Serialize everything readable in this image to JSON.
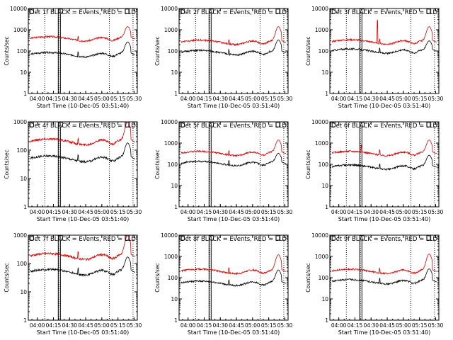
{
  "chart_data": [
    {
      "type": "line",
      "title": "Det 1f BLACK = Events, RED = LLD",
      "ylabel": "Counts/sec",
      "xlabel": "Start Time (10-Dec-05 03:51:40)",
      "yscale": "log",
      "ylim": [
        1,
        10000
      ],
      "x_ticks": [
        "04:00",
        "04:15",
        "04:30",
        "04:45",
        "05:00",
        "05:15",
        "05:30"
      ],
      "y_ticks": [
        "1",
        "10",
        "100",
        "1000",
        "10000"
      ],
      "flags": [
        "03:54",
        "04:21",
        "05:23"
      ],
      "series": [
        {
          "color": "#d40000",
          "level": 380,
          "spikes": []
        },
        {
          "color": "#000000",
          "level": 68,
          "spikes": []
        }
      ],
      "peak": {
        "time": "05:24",
        "red": 1400,
        "black": 270
      }
    },
    {
      "type": "line",
      "title": "Det 2f BLACK = Events, RED = LLD",
      "ylabel": "Counts/sec",
      "xlabel": "Start Time (10-Dec-05 03:51:40)",
      "yscale": "log",
      "ylim": [
        1,
        10000
      ],
      "x_ticks": [
        "04:00",
        "04:15",
        "04:30",
        "04:45",
        "05:00",
        "05:15",
        "05:30"
      ],
      "y_ticks": [
        "1",
        "10",
        "100",
        "1000",
        "10000"
      ],
      "flags": [
        "03:54",
        "04:21",
        "05:23"
      ],
      "series": [
        {
          "color": "#d40000",
          "level": 260,
          "spikes": []
        },
        {
          "color": "#000000",
          "level": 85,
          "spikes": []
        }
      ],
      "peak": {
        "time": "05:24",
        "red": 1400,
        "black": 330
      }
    },
    {
      "type": "line",
      "title": "Det 3f BLACK = Events, RED = LLD",
      "ylabel": "Counts/sec",
      "xlabel": "Start Time (10-Dec-05 03:51:40)",
      "yscale": "log",
      "ylim": [
        1,
        10000
      ],
      "x_ticks": [
        "04:00",
        "04:15",
        "04:30",
        "04:45",
        "05:00",
        "05:15",
        "05:30"
      ],
      "y_ticks": [
        "1",
        "10",
        "100",
        "1000",
        "10000"
      ],
      "flags": [
        "03:54",
        "04:21",
        "05:23"
      ],
      "series": [
        {
          "color": "#d40000",
          "level": 270,
          "spikes": [
            {
              "time": "04:36",
              "value": 2800
            }
          ]
        },
        {
          "color": "#000000",
          "level": 100,
          "spikes": []
        }
      ],
      "peak": {
        "time": "05:24",
        "red": 1400,
        "black": 300
      }
    },
    {
      "type": "line",
      "title": "Det 4f BLACK = Events, RED = LLD",
      "ylabel": "Counts/sec",
      "xlabel": "Start Time (10-Dec-05 03:51:40)",
      "yscale": "log",
      "ylim": [
        1,
        1000
      ],
      "x_ticks": [
        "04:00",
        "04:15",
        "04:30",
        "04:45",
        "05:00",
        "05:15",
        "05:30"
      ],
      "y_ticks": [
        "1",
        "10",
        "100",
        "1000"
      ],
      "flags": [
        "03:54",
        "04:21",
        "05:23"
      ],
      "series": [
        {
          "color": "#d40000",
          "level": 200,
          "spikes": []
        },
        {
          "color": "#000000",
          "level": 50,
          "spikes": []
        }
      ],
      "peak": {
        "time": "05:24",
        "red": 1000,
        "black": 180
      }
    },
    {
      "type": "line",
      "title": "Det 5f BLACK = Events, RED = LLD",
      "ylabel": "Counts/sec",
      "xlabel": "Start Time (10-Dec-05 03:51:40)",
      "yscale": "log",
      "ylim": [
        1,
        10000
      ],
      "x_ticks": [
        "04:00",
        "04:15",
        "04:30",
        "04:45",
        "05:00",
        "05:15",
        "05:30"
      ],
      "y_ticks": [
        "1",
        "10",
        "100",
        "1000",
        "10000"
      ],
      "flags": [
        "03:54",
        "04:21",
        "05:23"
      ],
      "series": [
        {
          "color": "#d40000",
          "level": 330,
          "spikes": []
        },
        {
          "color": "#000000",
          "level": 110,
          "spikes": []
        }
      ],
      "peak": {
        "time": "05:24",
        "red": 1400,
        "black": 330
      }
    },
    {
      "type": "line",
      "title": "Det 6f BLACK = Events, RED = LLD",
      "ylabel": "Counts/sec",
      "xlabel": "Start Time (10-Dec-05 03:51:40)",
      "yscale": "log",
      "ylim": [
        1,
        10000
      ],
      "x_ticks": [
        "04:00",
        "04:15",
        "04:30",
        "04:45",
        "05:00",
        "05:15",
        "05:30"
      ],
      "y_ticks": [
        "1",
        "10",
        "100",
        "1000",
        "10000"
      ],
      "flags": [
        "03:54",
        "04:21",
        "05:23"
      ],
      "series": [
        {
          "color": "#d40000",
          "level": 330,
          "spikes": [
            {
              "time": "04:21",
              "value": 800
            }
          ]
        },
        {
          "color": "#000000",
          "level": 75,
          "spikes": []
        }
      ],
      "peak": {
        "time": "05:24",
        "red": 1400,
        "black": 270
      }
    },
    {
      "type": "line",
      "title": "Det 7f BLACK = Events, RED = LLD",
      "ylabel": "Counts/sec",
      "xlabel": "Start Time (10-Dec-05 03:51:40)",
      "yscale": "log",
      "ylim": [
        1,
        1000
      ],
      "x_ticks": [
        "04:00",
        "04:15",
        "04:30",
        "04:45",
        "05:00",
        "05:15",
        "05:30"
      ],
      "y_ticks": [
        "1",
        "10",
        "100",
        "1000"
      ],
      "flags": [
        "03:54",
        "04:21",
        "05:23"
      ],
      "series": [
        {
          "color": "#d40000",
          "level": 180,
          "spikes": []
        },
        {
          "color": "#000000",
          "level": 50,
          "spikes": []
        }
      ],
      "peak": {
        "time": "05:24",
        "red": 1000,
        "black": 170
      }
    },
    {
      "type": "line",
      "title": "Det 8f BLACK = Events, RED = LLD",
      "ylabel": "Counts/sec",
      "xlabel": "Start Time (10-Dec-05 03:51:40)",
      "yscale": "log",
      "ylim": [
        1,
        10000
      ],
      "x_ticks": [
        "04:00",
        "04:15",
        "04:30",
        "04:45",
        "05:00",
        "05:15",
        "05:30"
      ],
      "y_ticks": [
        "1",
        "10",
        "100",
        "1000",
        "10000"
      ],
      "flags": [
        "03:54",
        "04:21",
        "05:23"
      ],
      "series": [
        {
          "color": "#d40000",
          "level": 200,
          "spikes": []
        },
        {
          "color": "#000000",
          "level": 55,
          "spikes": []
        }
      ],
      "peak": {
        "time": "05:24",
        "red": 1200,
        "black": 230
      }
    },
    {
      "type": "line",
      "title": "Det 9f BLACK = Events, RED = LLD",
      "ylabel": "Counts/sec",
      "xlabel": "Start Time (10-Dec-05 03:51:40)",
      "yscale": "log",
      "ylim": [
        1,
        10000
      ],
      "x_ticks": [
        "04:00",
        "04:15",
        "04:30",
        "04:45",
        "05:00",
        "05:15",
        "05:30"
      ],
      "y_ticks": [
        "1",
        "10",
        "100",
        "1000",
        "10000"
      ],
      "flags": [
        "03:54",
        "04:21",
        "05:23"
      ],
      "series": [
        {
          "color": "#d40000",
          "level": 200,
          "spikes": []
        },
        {
          "color": "#000000",
          "level": 65,
          "spikes": []
        }
      ],
      "peak": {
        "time": "05:24",
        "red": 1300,
        "black": 260
      }
    }
  ]
}
